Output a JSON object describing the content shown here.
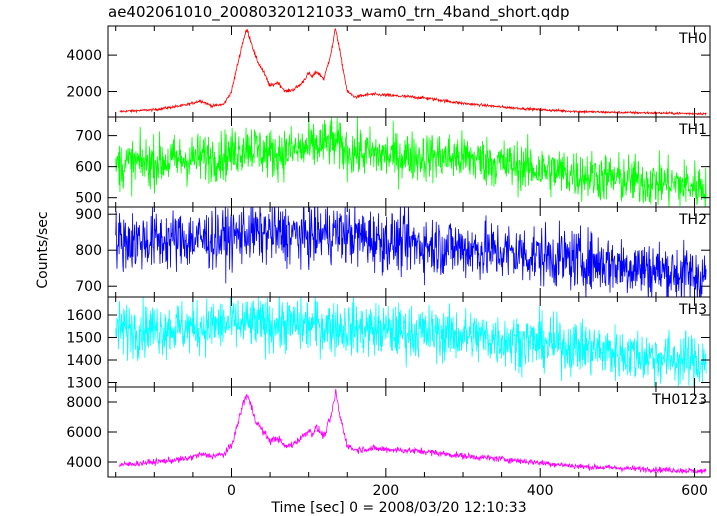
{
  "chart_data": {
    "type": "line",
    "title": "ae402061010_20080320121033_wam0_trn_4band_short.qdp",
    "xlabel": "Time [sec] 0 = 2008/03/20 12:10:33",
    "ylabel": "Counts/sec",
    "xlim": [
      -160,
      620
    ],
    "xticks": [
      0,
      200,
      400,
      600
    ],
    "grid": false,
    "panels": [
      {
        "name": "TH0",
        "color": "#ff0000",
        "ylim": [
          600,
          5600
        ],
        "yticks": [
          2000,
          4000
        ],
        "noise": 60,
        "x": [
          -145,
          -100,
          -60,
          -40,
          -25,
          -10,
          0,
          8,
          15,
          20,
          25,
          32,
          40,
          50,
          60,
          70,
          80,
          90,
          100,
          105,
          110,
          120,
          130,
          135,
          140,
          150,
          160,
          180,
          200,
          250,
          300,
          350,
          400,
          450,
          500,
          550,
          615
        ],
        "y": [
          900,
          1000,
          1250,
          1500,
          1200,
          1300,
          2000,
          3500,
          4800,
          5400,
          4800,
          3800,
          3200,
          2300,
          2500,
          2000,
          2100,
          2400,
          3000,
          2800,
          3100,
          2700,
          4300,
          5500,
          4300,
          2000,
          1700,
          1850,
          1800,
          1650,
          1350,
          1150,
          1000,
          900,
          850,
          820,
          780
        ]
      },
      {
        "name": "TH1",
        "color": "#00ff00",
        "ylim": [
          470,
          760
        ],
        "yticks": [
          500,
          600,
          700
        ],
        "noise": 40,
        "x": [
          -150,
          -50,
          0,
          20,
          50,
          100,
          130,
          150,
          200,
          300,
          350,
          400,
          500,
          615
        ],
        "y": [
          605,
          625,
          640,
          670,
          640,
          660,
          680,
          650,
          635,
          630,
          610,
          590,
          560,
          535
        ]
      },
      {
        "name": "TH2",
        "color": "#0000ff",
        "ylim": [
          670,
          920
        ],
        "yticks": [
          700,
          800,
          900
        ],
        "noise": 42,
        "x": [
          -150,
          -50,
          0,
          20,
          100,
          130,
          200,
          300,
          400,
          500,
          615
        ],
        "y": [
          825,
          830,
          835,
          850,
          840,
          850,
          825,
          805,
          785,
          760,
          725
        ]
      },
      {
        "name": "TH3",
        "color": "#00ffff",
        "ylim": [
          1280,
          1680
        ],
        "yticks": [
          1300,
          1400,
          1500,
          1600
        ],
        "noise": 60,
        "x": [
          -150,
          -50,
          0,
          100,
          200,
          300,
          400,
          450,
          500,
          615
        ],
        "y": [
          1535,
          1545,
          1560,
          1555,
          1530,
          1510,
          1475,
          1460,
          1430,
          1390
        ]
      },
      {
        "name": "TH0123",
        "color": "#ff00ff",
        "ylim": [
          3000,
          9000
        ],
        "yticks": [
          4000,
          6000,
          8000
        ],
        "noise": 90,
        "x": [
          -145,
          -100,
          -60,
          -40,
          -25,
          -10,
          0,
          8,
          15,
          20,
          25,
          32,
          40,
          50,
          60,
          70,
          80,
          90,
          100,
          105,
          110,
          120,
          130,
          135,
          140,
          150,
          160,
          180,
          200,
          250,
          300,
          350,
          400,
          450,
          500,
          550,
          615
        ],
        "y": [
          3800,
          4000,
          4200,
          4500,
          4400,
          4500,
          5100,
          6500,
          7900,
          8500,
          7800,
          6700,
          6100,
          5400,
          5600,
          5000,
          5200,
          5600,
          6100,
          5900,
          6300,
          5700,
          7200,
          8700,
          7200,
          5100,
          4800,
          4900,
          4850,
          4700,
          4400,
          4200,
          3950,
          3700,
          3600,
          3500,
          3380
        ]
      }
    ]
  }
}
